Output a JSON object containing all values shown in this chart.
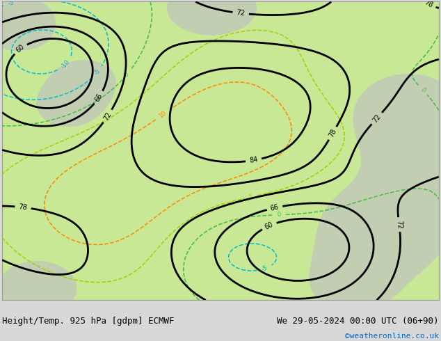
{
  "title_left": "Height/Temp. 925 hPa [gdpm] ECMWF",
  "title_right": "We 29-05-2024 00:00 UTC (06+90)",
  "credit": "©weatheronline.co.uk",
  "map_bg": "#c8e896",
  "gray_color": "#c0c0c0",
  "fig_width": 6.34,
  "fig_height": 4.9,
  "dpi": 100,
  "title_fontsize": 9,
  "credit_fontsize": 8,
  "credit_color": "#0066cc"
}
